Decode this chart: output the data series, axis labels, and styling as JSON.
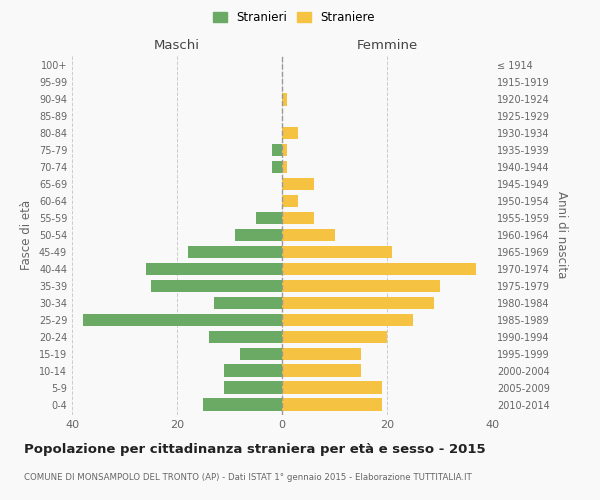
{
  "age_groups": [
    "100+",
    "95-99",
    "90-94",
    "85-89",
    "80-84",
    "75-79",
    "70-74",
    "65-69",
    "60-64",
    "55-59",
    "50-54",
    "45-49",
    "40-44",
    "35-39",
    "30-34",
    "25-29",
    "20-24",
    "15-19",
    "10-14",
    "5-9",
    "0-4"
  ],
  "birth_years": [
    "≤ 1914",
    "1915-1919",
    "1920-1924",
    "1925-1929",
    "1930-1934",
    "1935-1939",
    "1940-1944",
    "1945-1949",
    "1950-1954",
    "1955-1959",
    "1960-1964",
    "1965-1969",
    "1970-1974",
    "1975-1979",
    "1980-1984",
    "1985-1989",
    "1990-1994",
    "1995-1999",
    "2000-2004",
    "2005-2009",
    "2010-2014"
  ],
  "males": [
    0,
    0,
    0,
    0,
    0,
    2,
    2,
    0,
    0,
    5,
    9,
    18,
    26,
    25,
    13,
    38,
    14,
    8,
    11,
    11,
    15
  ],
  "females": [
    0,
    0,
    1,
    0,
    3,
    1,
    1,
    6,
    3,
    6,
    10,
    21,
    37,
    30,
    29,
    25,
    20,
    15,
    15,
    19,
    19
  ],
  "male_color": "#6aaa64",
  "female_color": "#f5c242",
  "background_color": "#f9f9f9",
  "grid_color": "#cccccc",
  "title": "Popolazione per cittadinanza straniera per età e sesso - 2015",
  "subtitle": "COMUNE DI MONSAMPOLO DEL TRONTO (AP) - Dati ISTAT 1° gennaio 2015 - Elaborazione TUTTITALIA.IT",
  "xlabel_left": "Maschi",
  "xlabel_right": "Femmine",
  "ylabel_left": "Fasce di età",
  "ylabel_right": "Anni di nascita",
  "legend_male": "Stranieri",
  "legend_female": "Straniere",
  "xlim": 40
}
